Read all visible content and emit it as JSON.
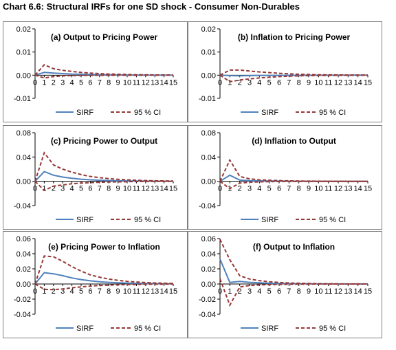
{
  "title": "Chart 6.6: Structural IRFs for one SD shock - Consumer Non-Durables",
  "colors": {
    "sirf": "#4f81bd",
    "ci": "#953735",
    "axis": "#000000",
    "border": "#7f7f7f"
  },
  "chart_data": [
    {
      "type": "line",
      "title": "(a) Output to Pricing Power",
      "x": [
        0,
        1,
        2,
        3,
        4,
        5,
        6,
        7,
        8,
        9,
        10,
        11,
        12,
        13,
        14,
        15
      ],
      "xticks": [
        "0",
        "1",
        "2",
        "3",
        "4",
        "5",
        "6",
        "7",
        "8",
        "9",
        "10",
        "11",
        "12",
        "13",
        "14",
        "15"
      ],
      "ylim": [
        -0.01,
        0.02
      ],
      "yticks": [
        "0.02",
        "0.01",
        "0.00",
        "-0.01"
      ],
      "ytick_values": [
        0.02,
        0.01,
        0.0,
        -0.01
      ],
      "series": [
        {
          "name": "SIRF",
          "style": "solid",
          "values": [
            0,
            0.0012,
            0.0009,
            0.0007,
            0.0005,
            0.0004,
            0.0003,
            0.0002,
            0.00015,
            0.0001,
            8e-05,
            6e-05,
            4e-05,
            3e-05,
            2e-05,
            1e-05
          ]
        },
        {
          "name": "95 % CI",
          "style": "dashed",
          "values": [
            0,
            0.0045,
            0.0028,
            0.0021,
            0.0016,
            0.0012,
            0.0009,
            0.0007,
            0.0005,
            0.0004,
            0.0003,
            0.0002,
            0.00015,
            0.0001,
            8e-05,
            5e-05
          ]
        },
        {
          "name": "",
          "style": "dashed",
          "values": [
            0,
            -0.0012,
            -0.0006,
            -0.0003,
            -0.0002,
            -0.0001,
            -8e-05,
            -6e-05,
            -4e-05,
            -3e-05,
            -2e-05,
            -1e-05,
            0,
            0,
            0,
            0
          ]
        }
      ],
      "legend": [
        "SIRF",
        "95 % CI"
      ]
    },
    {
      "type": "line",
      "title": "(b) Inflation to Pricing Power",
      "x": [
        0,
        1,
        2,
        3,
        4,
        5,
        6,
        7,
        8,
        9,
        10,
        11,
        12,
        13,
        14,
        15
      ],
      "xticks": [
        "0",
        "1",
        "2",
        "3",
        "4",
        "5",
        "6",
        "7",
        "8",
        "9",
        "10",
        "11",
        "12",
        "13",
        "14",
        "15"
      ],
      "ylim": [
        -0.01,
        0.02
      ],
      "yticks": [
        "0.02",
        "0.01",
        "0.00",
        "-0.01"
      ],
      "ytick_values": [
        0.02,
        0.01,
        0.0,
        -0.01
      ],
      "series": [
        {
          "name": "SIRF",
          "style": "solid",
          "values": [
            0,
            -0.0002,
            -0.0003,
            -0.0002,
            -0.00015,
            -0.0001,
            -8e-05,
            -6e-05,
            -4e-05,
            -3e-05,
            -2e-05,
            -1e-05,
            0,
            0,
            0,
            0
          ]
        },
        {
          "name": "95 % CI",
          "style": "dashed",
          "values": [
            0,
            0.0022,
            0.0022,
            0.0018,
            0.0014,
            0.0011,
            0.0008,
            0.0006,
            0.0004,
            0.0003,
            0.0002,
            0.00015,
            0.0001,
            8e-05,
            5e-05,
            3e-05
          ]
        },
        {
          "name": "",
          "style": "dashed",
          "values": [
            0,
            -0.0028,
            -0.0021,
            -0.0016,
            -0.0012,
            -0.0009,
            -0.0006,
            -0.0004,
            -0.0003,
            -0.0002,
            -0.00015,
            -0.0001,
            -8e-05,
            -5e-05,
            -3e-05,
            -2e-05
          ]
        }
      ],
      "legend": [
        "SIRF",
        "95 % CI"
      ]
    },
    {
      "type": "line",
      "title": "(c) Pricing Power to Output",
      "x": [
        0,
        1,
        2,
        3,
        4,
        5,
        6,
        7,
        8,
        9,
        10,
        11,
        12,
        13,
        14,
        15
      ],
      "xticks": [
        "0",
        "1",
        "2",
        "3",
        "4",
        "5",
        "6",
        "7",
        "8",
        "9",
        "10",
        "11",
        "12",
        "13",
        "14",
        "15"
      ],
      "ylim": [
        -0.04,
        0.08
      ],
      "yticks": [
        "0.08",
        "0.04",
        "0.00",
        "-0.04"
      ],
      "ytick_values": [
        0.08,
        0.04,
        0.0,
        -0.04
      ],
      "series": [
        {
          "name": "SIRF",
          "style": "solid",
          "values": [
            0,
            0.016,
            0.01,
            0.007,
            0.005,
            0.0035,
            0.0025,
            0.0018,
            0.0013,
            0.0009,
            0.0006,
            0.0004,
            0.0003,
            0.0002,
            0.0001,
            0.0001
          ]
        },
        {
          "name": "95 % CI",
          "style": "dashed",
          "values": [
            0,
            0.047,
            0.027,
            0.02,
            0.015,
            0.011,
            0.008,
            0.006,
            0.0045,
            0.0033,
            0.0024,
            0.0017,
            0.0012,
            0.0009,
            0.0006,
            0.0004
          ]
        },
        {
          "name": "",
          "style": "dashed",
          "values": [
            0,
            -0.015,
            -0.008,
            -0.006,
            -0.004,
            -0.003,
            -0.0022,
            -0.0016,
            -0.0012,
            -0.0009,
            -0.0006,
            -0.0004,
            -0.0003,
            -0.0002,
            -0.0001,
            -0.0001
          ]
        }
      ],
      "legend": [
        "SIRF",
        "95 % CI"
      ]
    },
    {
      "type": "line",
      "title": "(d) Inflation to Output",
      "x": [
        0,
        1,
        2,
        3,
        4,
        5,
        6,
        7,
        8,
        9,
        10,
        11,
        12,
        13,
        14,
        15
      ],
      "xticks": [
        "0",
        "1",
        "2",
        "3",
        "4",
        "5",
        "6",
        "7",
        "8",
        "9",
        "10",
        "11",
        "12",
        "13",
        "14",
        "15"
      ],
      "ylim": [
        -0.04,
        0.08
      ],
      "yticks": [
        "0.08",
        "0.04",
        "0.00",
        "-0.04"
      ],
      "ytick_values": [
        0.08,
        0.04,
        0.0,
        -0.04
      ],
      "series": [
        {
          "name": "SIRF",
          "style": "solid",
          "values": [
            0,
            0.01,
            0.002,
            0.001,
            0.0006,
            0.0004,
            0.0003,
            0.0002,
            0.0001,
            0.0001,
            0,
            0,
            0,
            0,
            0,
            0
          ]
        },
        {
          "name": "95 % CI",
          "style": "dashed",
          "values": [
            0,
            0.035,
            0.008,
            0.004,
            0.0025,
            0.0018,
            0.0012,
            0.0008,
            0.0005,
            0.0003,
            0.0002,
            0.0001,
            0.0001,
            0,
            0,
            0
          ]
        },
        {
          "name": "",
          "style": "dashed",
          "values": [
            0,
            -0.012,
            -0.003,
            -0.0015,
            -0.001,
            -0.0006,
            -0.0004,
            -0.0003,
            -0.0002,
            -0.0001,
            -0.0001,
            0,
            0,
            0,
            0,
            0
          ]
        }
      ],
      "legend": [
        "SIRF",
        "95 % CI"
      ]
    },
    {
      "type": "line",
      "title": "(e) Pricing Power to Inflation",
      "x": [
        0,
        1,
        2,
        3,
        4,
        5,
        6,
        7,
        8,
        9,
        10,
        11,
        12,
        13,
        14,
        15
      ],
      "xticks": [
        "0",
        "1",
        "2",
        "3",
        "4",
        "5",
        "6",
        "7",
        "8",
        "9",
        "10",
        "11",
        "12",
        "13",
        "14",
        "15"
      ],
      "ylim": [
        -0.04,
        0.06
      ],
      "yticks": [
        "0.06",
        "0.04",
        "0.02",
        "0.00",
        "-0.02",
        "-0.04"
      ],
      "ytick_values": [
        0.06,
        0.04,
        0.02,
        0.0,
        -0.02,
        -0.04
      ],
      "series": [
        {
          "name": "SIRF",
          "style": "solid",
          "values": [
            0,
            0.015,
            0.0135,
            0.011,
            0.008,
            0.0058,
            0.0042,
            0.003,
            0.0022,
            0.0016,
            0.0012,
            0.0009,
            0.0006,
            0.0004,
            0.0003,
            0.0002
          ]
        },
        {
          "name": "95 % CI",
          "style": "dashed",
          "values": [
            0,
            0.037,
            0.036,
            0.03,
            0.023,
            0.017,
            0.012,
            0.009,
            0.0065,
            0.0048,
            0.0035,
            0.0026,
            0.0019,
            0.0014,
            0.001,
            0.0007
          ]
        },
        {
          "name": "",
          "style": "dashed",
          "values": [
            0,
            -0.007,
            -0.0075,
            -0.0065,
            -0.005,
            -0.0038,
            -0.0028,
            -0.002,
            -0.0015,
            -0.0011,
            -0.0008,
            -0.0006,
            -0.0004,
            -0.0003,
            -0.0002,
            -0.0001
          ]
        }
      ],
      "legend": [
        "SIRF",
        "95 % CI"
      ]
    },
    {
      "type": "line",
      "title": "(f) Output to Inflation",
      "x": [
        0,
        1,
        2,
        3,
        4,
        5,
        6,
        7,
        8,
        9,
        10,
        11,
        12,
        13,
        14,
        15
      ],
      "xticks": [
        "0",
        "1",
        "2",
        "3",
        "4",
        "5",
        "6",
        "7",
        "8",
        "9",
        "10",
        "11",
        "12",
        "13",
        "14",
        "15"
      ],
      "ylim": [
        -0.04,
        0.06
      ],
      "yticks": [
        "0.06",
        "0.04",
        "0.02",
        "0.00",
        "-0.02",
        "-0.04"
      ],
      "ytick_values": [
        0.06,
        0.04,
        0.02,
        0.0,
        -0.02,
        -0.04
      ],
      "series": [
        {
          "name": "SIRF",
          "style": "solid",
          "values": [
            0.033,
            0.002,
            0.0035,
            0.0022,
            0.0015,
            0.001,
            0.0007,
            0.0005,
            0.0003,
            0.0002,
            0.0001,
            0.0001,
            0,
            0,
            0,
            0
          ]
        },
        {
          "name": "95 % CI",
          "style": "dashed",
          "values": [
            0.059,
            0.032,
            0.011,
            0.0065,
            0.0045,
            0.003,
            0.002,
            0.0014,
            0.001,
            0.0007,
            0.0005,
            0.0003,
            0.0002,
            0.0001,
            0.0001,
            0
          ]
        },
        {
          "name": "",
          "style": "dashed",
          "values": [
            0.007,
            -0.028,
            -0.004,
            -0.002,
            -0.0013,
            -0.0009,
            -0.0006,
            -0.0004,
            -0.0003,
            -0.0002,
            -0.0001,
            -0.0001,
            0,
            0,
            0,
            0
          ]
        }
      ],
      "legend": [
        "SIRF",
        "95 % CI"
      ]
    }
  ]
}
